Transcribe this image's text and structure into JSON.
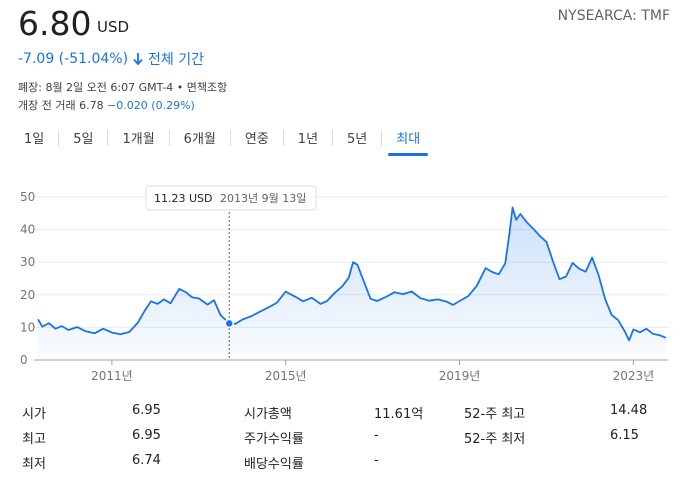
{
  "quote": {
    "price": "6.80",
    "currency": "USD",
    "ticker": "NYSEARCA: TMF",
    "change": "-7.09 (-51.04%)",
    "period": "전체 기간",
    "status_line": "폐장: 8월 2일 오전 6:07 GMT-4 • 면책조항",
    "premarket_label": "개장 전 거래 6.78",
    "premarket_change": "−0.020 (0.29%)"
  },
  "tabs": [
    {
      "label": "1일",
      "active": false
    },
    {
      "label": "5일",
      "active": false
    },
    {
      "label": "1개월",
      "active": false
    },
    {
      "label": "6개월",
      "active": false
    },
    {
      "label": "연중",
      "active": false
    },
    {
      "label": "1년",
      "active": false
    },
    {
      "label": "5년",
      "active": false
    },
    {
      "label": "최대",
      "active": true
    }
  ],
  "tooltip": {
    "value": "11.23 USD",
    "date": "2013년 9월 13일"
  },
  "chart_data": {
    "type": "area",
    "y_ticks": [
      "50",
      "40",
      "30",
      "20",
      "10",
      "0"
    ],
    "x_ticks": [
      "2011년",
      "2015년",
      "2019년",
      "2023년"
    ],
    "ylim": [
      0,
      50
    ],
    "xlim": [
      2009.3,
      2023.75
    ],
    "grid": true,
    "color": "#1a73e8",
    "points": [
      [
        2009.3,
        12.5
      ],
      [
        2009.4,
        10.2
      ],
      [
        2009.55,
        11.3
      ],
      [
        2009.7,
        9.6
      ],
      [
        2009.85,
        10.4
      ],
      [
        2010.0,
        9.2
      ],
      [
        2010.2,
        10.1
      ],
      [
        2010.4,
        8.8
      ],
      [
        2010.6,
        8.2
      ],
      [
        2010.8,
        9.6
      ],
      [
        2011.0,
        8.4
      ],
      [
        2011.2,
        7.9
      ],
      [
        2011.4,
        8.6
      ],
      [
        2011.6,
        11.5
      ],
      [
        2011.75,
        15.0
      ],
      [
        2011.9,
        18.0
      ],
      [
        2012.05,
        17.2
      ],
      [
        2012.2,
        18.6
      ],
      [
        2012.35,
        17.4
      ],
      [
        2012.55,
        21.8
      ],
      [
        2012.7,
        20.8
      ],
      [
        2012.85,
        19.2
      ],
      [
        2013.0,
        18.9
      ],
      [
        2013.2,
        17.0
      ],
      [
        2013.35,
        18.3
      ],
      [
        2013.5,
        13.8
      ],
      [
        2013.7,
        11.23
      ],
      [
        2013.85,
        11.1
      ],
      [
        2014.0,
        12.4
      ],
      [
        2014.2,
        13.4
      ],
      [
        2014.4,
        14.8
      ],
      [
        2014.6,
        16.1
      ],
      [
        2014.8,
        17.6
      ],
      [
        2015.0,
        21.0
      ],
      [
        2015.1,
        20.2
      ],
      [
        2015.25,
        19.2
      ],
      [
        2015.4,
        18.0
      ],
      [
        2015.6,
        19.1
      ],
      [
        2015.8,
        17.2
      ],
      [
        2015.95,
        18.1
      ],
      [
        2016.1,
        20.2
      ],
      [
        2016.3,
        22.6
      ],
      [
        2016.45,
        25.2
      ],
      [
        2016.55,
        30.0
      ],
      [
        2016.65,
        29.2
      ],
      [
        2016.8,
        24.0
      ],
      [
        2016.95,
        18.8
      ],
      [
        2017.1,
        18.1
      ],
      [
        2017.3,
        19.3
      ],
      [
        2017.5,
        20.8
      ],
      [
        2017.7,
        20.2
      ],
      [
        2017.9,
        21.0
      ],
      [
        2018.1,
        19.0
      ],
      [
        2018.3,
        18.2
      ],
      [
        2018.5,
        18.6
      ],
      [
        2018.7,
        17.9
      ],
      [
        2018.85,
        16.9
      ],
      [
        2019.0,
        18.1
      ],
      [
        2019.2,
        19.6
      ],
      [
        2019.4,
        22.8
      ],
      [
        2019.6,
        28.2
      ],
      [
        2019.75,
        27.0
      ],
      [
        2019.9,
        26.3
      ],
      [
        2020.05,
        29.6
      ],
      [
        2020.15,
        39.0
      ],
      [
        2020.22,
        46.8
      ],
      [
        2020.3,
        43.0
      ],
      [
        2020.4,
        44.8
      ],
      [
        2020.55,
        42.2
      ],
      [
        2020.7,
        40.2
      ],
      [
        2020.85,
        38.0
      ],
      [
        2021.0,
        36.2
      ],
      [
        2021.15,
        30.2
      ],
      [
        2021.3,
        24.8
      ],
      [
        2021.45,
        25.6
      ],
      [
        2021.6,
        29.8
      ],
      [
        2021.75,
        28.0
      ],
      [
        2021.9,
        27.1
      ],
      [
        2022.05,
        31.4
      ],
      [
        2022.2,
        26.0
      ],
      [
        2022.35,
        18.6
      ],
      [
        2022.5,
        13.8
      ],
      [
        2022.65,
        12.2
      ],
      [
        2022.8,
        8.8
      ],
      [
        2022.9,
        6.0
      ],
      [
        2023.0,
        9.4
      ],
      [
        2023.15,
        8.5
      ],
      [
        2023.3,
        9.6
      ],
      [
        2023.45,
        8.0
      ],
      [
        2023.6,
        7.6
      ],
      [
        2023.75,
        6.8
      ]
    ]
  },
  "stats": {
    "col1": [
      {
        "label": "시가",
        "value": "6.95"
      },
      {
        "label": "최고",
        "value": "6.95"
      },
      {
        "label": "최저",
        "value": "6.74"
      }
    ],
    "col2": [
      {
        "label": "시가총액",
        "value": "11.61억"
      },
      {
        "label": "주가수익률",
        "value": "-"
      },
      {
        "label": "배당수익률",
        "value": "-"
      }
    ],
    "col3": [
      {
        "label": "52-주 최고",
        "value": "14.48"
      },
      {
        "label": "52-주 최저",
        "value": "6.15"
      }
    ]
  }
}
